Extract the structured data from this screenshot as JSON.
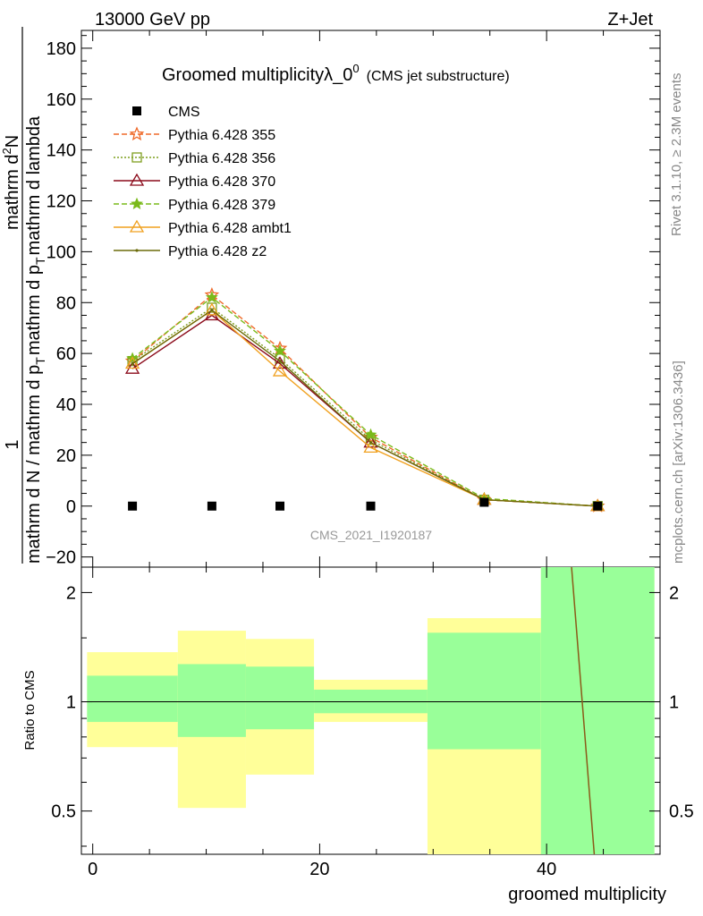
{
  "header": {
    "left": "13000 GeV pp",
    "right": "Z+Jet"
  },
  "title": {
    "main": "Groomed multiplicity",
    "lambda": "λ_0",
    "sup": "0",
    "suffix": "(CMS jet substructure)"
  },
  "side_labels": {
    "rivet": "Rivet 3.1.10, ≥ 2.3M events",
    "mcplots": "mcplots.cern.ch [arXiv:1306.3436]"
  },
  "watermark": "CMS_2021_I1920187",
  "ylabel_top": {
    "one": "1",
    "den": "mathrm d N / mathrm d p",
    "den_sub": "T",
    "den_end": "mathrm d p",
    "den_sub2": "T",
    "num": "mathrm d",
    "num_sup": "2",
    "num_end": "N",
    "lambda_tail": "mathrm d lambda"
  },
  "ylabel_top_plain": {
    "left": "mathrm d N / mathrm d p",
    "sub1": "T",
    "mid": "mathrm d p",
    "sub2": "T",
    "right": "mathrm d lambda",
    "numer": "mathrm d",
    "numer_sup": "2",
    "numer_end": "N"
  },
  "ylabel_ratio": "Ratio to CMS",
  "xlabel": "groomed multiplicity",
  "chart_data": {
    "type": "line",
    "x_ticks_labels": [
      "0",
      "20",
      "40"
    ],
    "y_ticks_labels": [
      "−20",
      "0",
      "20",
      "40",
      "60",
      "80",
      "100",
      "120",
      "140",
      "160",
      "180"
    ],
    "ratio_ticks_labels": [
      "0.5",
      "1",
      "2"
    ],
    "xlim": [
      -1,
      50
    ],
    "ylim": [
      -24,
      187
    ],
    "ratio_ylim": [
      0.38,
      2.35
    ],
    "bins": [
      [
        -0.5,
        7.5
      ],
      [
        7.5,
        13.5
      ],
      [
        13.5,
        19.5
      ],
      [
        19.5,
        29.5
      ],
      [
        29.5,
        39.5
      ],
      [
        39.5,
        49.5
      ]
    ],
    "x": [
      3.5,
      10.5,
      16.5,
      24.5,
      34.5,
      44.5
    ],
    "data": {
      "name": "CMS",
      "values": [
        0,
        0,
        0,
        0,
        1.5,
        0
      ],
      "ratio_band_inner": [
        [
          0.88,
          1.18
        ],
        [
          0.8,
          1.27
        ],
        [
          0.84,
          1.25
        ],
        [
          0.93,
          1.08
        ],
        [
          0.74,
          1.55
        ],
        [
          0.3,
          2.4
        ]
      ],
      "ratio_band_outer": [
        [
          0.75,
          1.37
        ],
        [
          0.51,
          1.57
        ],
        [
          0.63,
          1.49
        ],
        [
          0.88,
          1.15
        ],
        [
          0.3,
          1.7
        ],
        [
          0.3,
          2.4
        ]
      ]
    },
    "series": [
      {
        "name": "Pythia 6.428 355",
        "color": "#ef6a2a",
        "dash": "6,3",
        "marker": "star-open",
        "values": [
          57,
          83,
          62,
          27,
          2.5,
          0
        ]
      },
      {
        "name": "Pythia 6.428 356",
        "color": "#7f9f1f",
        "dash": "2,2",
        "marker": "square-open",
        "values": [
          57,
          78,
          58,
          26,
          2.5,
          0
        ]
      },
      {
        "name": "Pythia 6.428 370",
        "color": "#8b0a1a",
        "dash": "",
        "marker": "triangle-open",
        "values": [
          54,
          75,
          56,
          25,
          2.5,
          0
        ]
      },
      {
        "name": "Pythia 6.428 379",
        "color": "#7aba1a",
        "dash": "6,3",
        "marker": "star-filled",
        "values": [
          58,
          82,
          61,
          28,
          3,
          0
        ]
      },
      {
        "name": "Pythia 6.428 ambt1",
        "color": "#f0a01e",
        "dash": "",
        "marker": "triangle-open",
        "values": [
          56,
          77,
          53,
          23,
          2.5,
          0
        ]
      },
      {
        "name": "Pythia 6.428 z2",
        "color": "#6b6b0a",
        "dash": "",
        "marker": "dot",
        "values": [
          56,
          77,
          57,
          25,
          2.5,
          0
        ]
      }
    ],
    "ratio_line": {
      "x": [
        42.2,
        44.2
      ],
      "y": [
        2.35,
        0.38
      ],
      "color": "#8b5a1a"
    }
  }
}
